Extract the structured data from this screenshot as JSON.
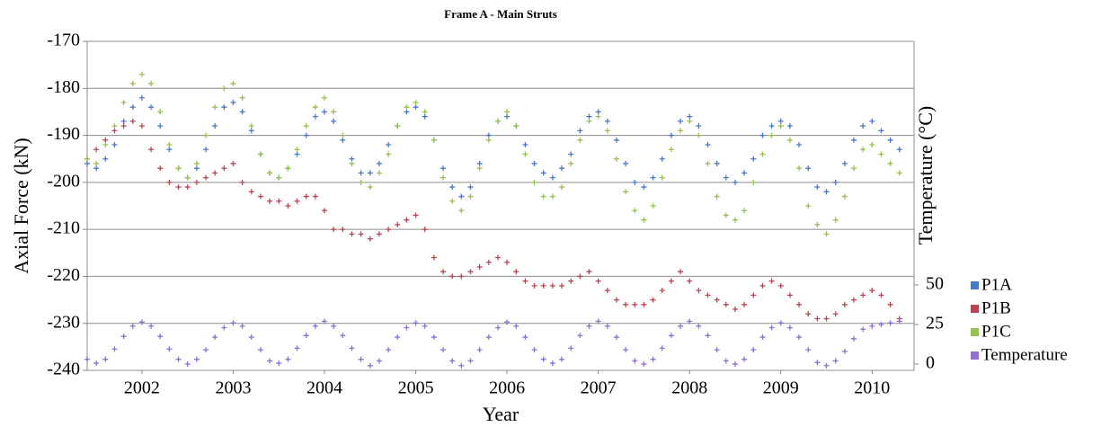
{
  "chart_data": {
    "type": "scatter",
    "title": "Frame A - Main Struts",
    "x_label": "Year",
    "y_label": "Axial Force  (kN)",
    "y2_label": "Temperature (°C)",
    "xlim": [
      2001.9,
      2010.96
    ],
    "xticks": [
      {
        "value": 2002.5,
        "label": "2002"
      },
      {
        "value": 2003.5,
        "label": "2003"
      },
      {
        "value": 2004.5,
        "label": "2004"
      },
      {
        "value": 2005.5,
        "label": "2005"
      },
      {
        "value": 2006.5,
        "label": "2006"
      },
      {
        "value": 2007.5,
        "label": "2007"
      },
      {
        "value": 2008.5,
        "label": "2008"
      },
      {
        "value": 2009.5,
        "label": "2009"
      },
      {
        "value": 2010.5,
        "label": "2010"
      }
    ],
    "ylim": [
      -240,
      -170
    ],
    "yticks": [
      -240,
      -230,
      -220,
      -210,
      -200,
      -190,
      -180,
      -170
    ],
    "y2lim": [
      -4,
      204
    ],
    "y2ticks": [
      0,
      25,
      50
    ],
    "grid": true,
    "legend": "right",
    "x": [
      2001.9,
      2002.0,
      2002.1,
      2002.2,
      2002.3,
      2002.4,
      2002.5,
      2002.6,
      2002.7,
      2002.8,
      2002.9,
      2003.0,
      2003.1,
      2003.2,
      2003.3,
      2003.4,
      2003.5,
      2003.6,
      2003.7,
      2003.8,
      2003.9,
      2004.0,
      2004.1,
      2004.2,
      2004.3,
      2004.4,
      2004.5,
      2004.6,
      2004.7,
      2004.8,
      2004.9,
      2005.0,
      2005.1,
      2005.2,
      2005.3,
      2005.4,
      2005.5,
      2005.6,
      2005.7,
      2005.8,
      2005.9,
      2006.0,
      2006.1,
      2006.2,
      2006.3,
      2006.4,
      2006.5,
      2006.6,
      2006.7,
      2006.8,
      2006.9,
      2007.0,
      2007.1,
      2007.2,
      2007.3,
      2007.4,
      2007.5,
      2007.6,
      2007.7,
      2007.8,
      2007.9,
      2008.0,
      2008.1,
      2008.2,
      2008.3,
      2008.4,
      2008.5,
      2008.6,
      2008.7,
      2008.8,
      2008.9,
      2009.0,
      2009.1,
      2009.2,
      2009.3,
      2009.4,
      2009.5,
      2009.6,
      2009.7,
      2009.8,
      2009.9,
      2010.0,
      2010.1,
      2010.2,
      2010.3,
      2010.4,
      2010.5,
      2010.6,
      2010.7,
      2010.8
    ],
    "series": [
      {
        "name": "P1A",
        "color": "#4a78c8",
        "values": [
          -196,
          -197,
          -195,
          -192,
          -187,
          -184,
          -182,
          -184,
          -188,
          -193,
          -197,
          -199,
          -197,
          -193,
          -188,
          -184,
          -183,
          -185,
          -189,
          -194,
          -198,
          -199,
          -197,
          -194,
          -190,
          -186,
          -185,
          -187,
          -191,
          -195,
          -198,
          -198,
          -196,
          -192,
          -188,
          -185,
          -184,
          -186,
          -191,
          -197,
          -201,
          -203,
          -201,
          -196,
          -190,
          -187,
          -186,
          -188,
          -192,
          -196,
          -198,
          -199,
          -197,
          -194,
          -189,
          -186,
          -185,
          -187,
          -191,
          -196,
          -200,
          -201,
          -199,
          -195,
          -190,
          -187,
          -186,
          -188,
          -192,
          -196,
          -199,
          -200,
          -198,
          -195,
          -190,
          -188,
          -187,
          -188,
          -192,
          -197,
          -201,
          -202,
          -200,
          -196,
          -191,
          -188,
          -187,
          -189,
          -191,
          -193
        ]
      },
      {
        "name": "P1B",
        "color": "#b84650",
        "values": [
          -195,
          -193,
          -191,
          -189,
          -188,
          -187,
          -188,
          -193,
          -197,
          -200,
          -201,
          -201,
          -200,
          -199,
          -198,
          -197,
          -196,
          -200,
          -202,
          -203,
          -204,
          -204,
          -205,
          -204,
          -203,
          -203,
          -206,
          -210,
          -210,
          -211,
          -211,
          -212,
          -211,
          -210,
          -209,
          -208,
          -207,
          -210,
          -216,
          -219,
          -220,
          -220,
          -219,
          -218,
          -217,
          -216,
          -217,
          -219,
          -221,
          -222,
          -222,
          -222,
          -222,
          -221,
          -220,
          -219,
          -221,
          -223,
          -225,
          -226,
          -226,
          -226,
          -225,
          -223,
          -221,
          -219,
          -221,
          -223,
          -224,
          -225,
          -226,
          -227,
          -226,
          -224,
          -222,
          -221,
          -222,
          -224,
          -226,
          -228,
          -229,
          -229,
          -228,
          -226,
          -225,
          -224,
          -223,
          -224,
          -226,
          -229
        ]
      },
      {
        "name": "P1C",
        "color": "#96c050",
        "values": [
          -195,
          -196,
          -192,
          -188,
          -183,
          -179,
          -177,
          -179,
          -185,
          -192,
          -197,
          -199,
          -196,
          -190,
          -184,
          -180,
          -179,
          -182,
          -188,
          -194,
          -198,
          -199,
          -197,
          -193,
          -188,
          -184,
          -182,
          -185,
          -190,
          -196,
          -200,
          -201,
          -198,
          -194,
          -188,
          -184,
          -183,
          -185,
          -191,
          -199,
          -204,
          -206,
          -203,
          -197,
          -191,
          -187,
          -185,
          -188,
          -194,
          -200,
          -203,
          -203,
          -201,
          -196,
          -191,
          -187,
          -186,
          -189,
          -195,
          -202,
          -206,
          -208,
          -205,
          -199,
          -193,
          -189,
          -187,
          -190,
          -196,
          -203,
          -207,
          -208,
          -206,
          -200,
          -194,
          -190,
          -188,
          -191,
          -197,
          -205,
          -209,
          -211,
          -208,
          -203,
          -197,
          -193,
          -192,
          -194,
          -196,
          -198
        ]
      },
      {
        "name": "Temperature",
        "color": "#8f6fd0",
        "axis": "y2",
        "values": [
          3,
          0.5,
          3,
          9.5,
          17.5,
          24,
          26.5,
          24,
          17.5,
          9.5,
          3,
          0,
          3,
          9,
          17,
          23,
          26,
          24,
          17,
          9,
          2,
          0.5,
          3,
          10,
          18,
          24,
          27,
          24,
          18,
          10,
          3,
          -1,
          2,
          9,
          17,
          23,
          26,
          24,
          17,
          9,
          2,
          -1,
          2,
          9,
          17,
          23,
          26.5,
          24,
          17,
          9,
          3,
          0.5,
          3,
          10,
          18,
          24,
          27,
          24,
          17,
          9,
          2,
          0,
          3,
          10,
          18,
          24,
          27,
          24,
          18,
          9,
          2,
          0,
          3,
          9,
          17,
          23,
          26,
          23,
          17,
          9,
          1,
          -1,
          2,
          8,
          16,
          22,
          24,
          25,
          26,
          27
        ]
      }
    ]
  }
}
